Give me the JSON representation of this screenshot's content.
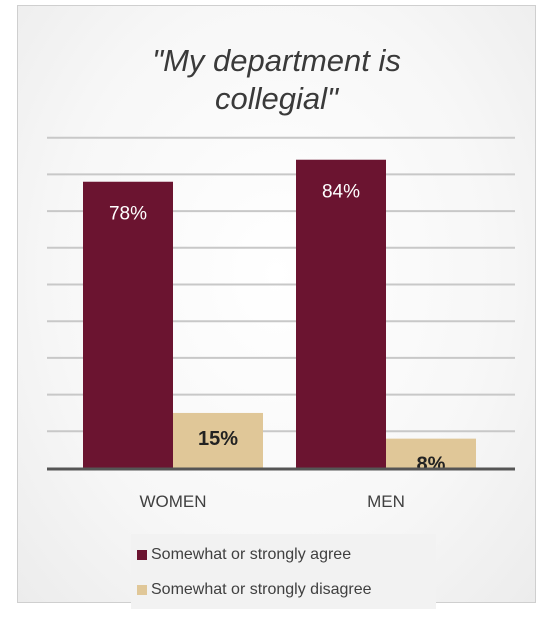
{
  "colors": {
    "agree": "#6b1430",
    "disagree": "#e0c798",
    "grid": "#c8c8c8",
    "axis": "#555555",
    "label_on_dark": "#ffffff",
    "label_on_light": "#222222"
  },
  "chart_data": {
    "type": "bar",
    "title": "\"My department is\ncollegial\"",
    "categories": [
      "WOMEN",
      "MEN"
    ],
    "series": [
      {
        "name": "Somewhat or strongly agree",
        "values": [
          78,
          84
        ],
        "labels": [
          "78%",
          "84%"
        ]
      },
      {
        "name": "Somewhat or strongly disagree",
        "values": [
          15,
          8
        ],
        "labels": [
          "15%",
          "8%"
        ]
      }
    ],
    "ylim": [
      0,
      90
    ],
    "grid": true,
    "legend": "bottom"
  }
}
